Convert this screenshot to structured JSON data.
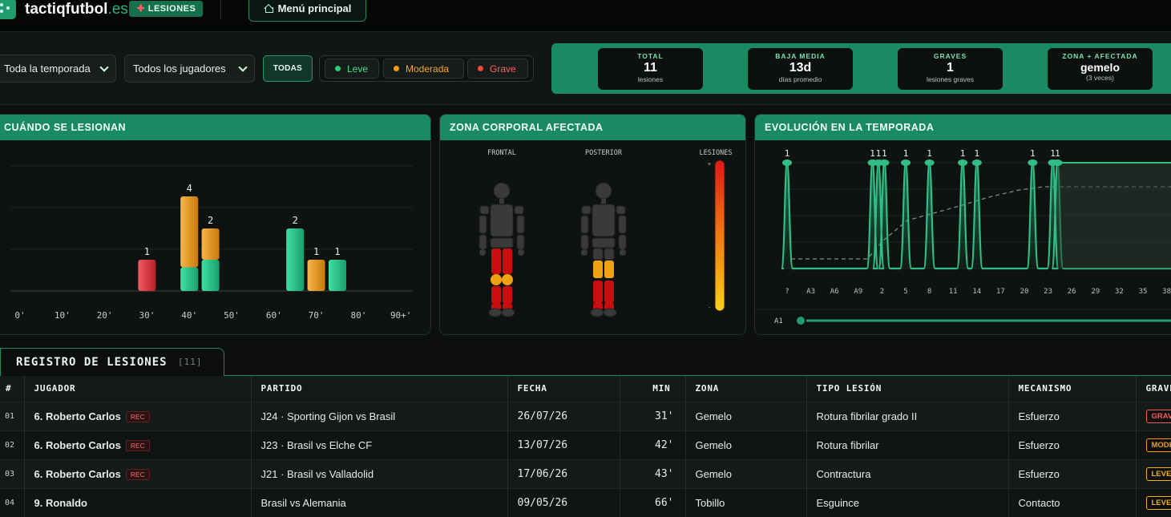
{
  "topbar": {
    "brand_name": "tactiqfutbol",
    "brand_tld": ".es",
    "section_badge": "LESIONES",
    "menu_button": "Menú principal"
  },
  "filters": {
    "season": "Toda la temporada",
    "players": "Todos los jugadores",
    "all_button": "TODAS",
    "severities": [
      {
        "label": "Leve",
        "color": "#2ecc71"
      },
      {
        "label": "Moderada",
        "color": "#f39c12"
      },
      {
        "label": "Grave",
        "color": "#e74c3c"
      }
    ]
  },
  "stats": [
    {
      "label": "TOTAL",
      "value": "11",
      "sub": "lesiones"
    },
    {
      "label": "BAJA MEDIA",
      "value": "13d",
      "sub": "días promedio"
    },
    {
      "label": "GRAVES",
      "value": "1",
      "sub": "lesiones graves"
    },
    {
      "label": "ZONA + AFECTADA",
      "value": "gemelo",
      "sub": "(3 veces)"
    }
  ],
  "panels": {
    "when": "CUÁNDO SE LESIONAN",
    "body": "ZONA CORPORAL AFECTADA",
    "evolution": "EVOLUCIÓN EN LA TEMPORADA"
  },
  "body_map": {
    "front_label": "FRONTAL",
    "back_label": "POSTERIOR",
    "scale_label": "LESIONES",
    "scale_max": "+",
    "scale_min": "-"
  },
  "chart_data": [
    {
      "type": "bar",
      "title": "CUÁNDO SE LESIONAN",
      "x_ticks": [
        "0'",
        "10'",
        "20'",
        "30'",
        "40'",
        "50'",
        "60'",
        "70'",
        "80'",
        "90+'"
      ],
      "ylim": [
        0,
        4
      ],
      "bars": [
        {
          "minute": 30,
          "total": 1,
          "segments": [
            {
              "severity": "Grave",
              "value": 1
            }
          ]
        },
        {
          "minute": 40,
          "total": 4,
          "segments": [
            {
              "severity": "Leve",
              "value": 1
            },
            {
              "severity": "Moderada",
              "value": 3
            }
          ]
        },
        {
          "minute": 45,
          "total": 2,
          "segments": [
            {
              "severity": "Leve",
              "value": 1
            },
            {
              "severity": "Moderada",
              "value": 1
            }
          ]
        },
        {
          "minute": 65,
          "total": 2,
          "segments": [
            {
              "severity": "Leve",
              "value": 2
            }
          ]
        },
        {
          "minute": 70,
          "total": 1,
          "segments": [
            {
              "severity": "Moderada",
              "value": 1
            }
          ]
        },
        {
          "minute": 75,
          "total": 1,
          "segments": [
            {
              "severity": "Leve",
              "value": 1
            }
          ]
        }
      ]
    },
    {
      "type": "line",
      "title": "EVOLUCIÓN EN LA TEMPORADA",
      "x_ticks": [
        "?",
        "A3",
        "A6",
        "A9",
        "2",
        "5",
        "8",
        "11",
        "14",
        "17",
        "20",
        "23",
        "26",
        "29",
        "32",
        "35",
        "38"
      ],
      "peak_positions": [
        0,
        3.6,
        3.85,
        4.1,
        5,
        6,
        7.4,
        8,
        10.35,
        11.2,
        11.4
      ],
      "peak_labels": [
        "1",
        "1",
        "1",
        "1",
        "1",
        "1",
        "1",
        "1",
        "1",
        "1",
        "1"
      ],
      "slider_label": "A1"
    }
  ],
  "registry": {
    "title": "REGISTRO DE LESIONES",
    "count": "[11]",
    "columns": [
      "#",
      "JUGADOR",
      "PARTIDO",
      "FECHA",
      "MIN",
      "ZONA",
      "TIPO LESIÓN",
      "MECANISMO",
      "GRAVEDAD"
    ],
    "rec_label": "REC",
    "rows": [
      {
        "num": "01",
        "player": "6. Roberto Carlos",
        "rec": true,
        "match": "J24 · Sporting Gijon vs Brasil",
        "date": "26/07/26",
        "min": "31'",
        "zone": "Gemelo",
        "type": "Rotura fibrilar grado II",
        "mechanism": "Esfuerzo",
        "severity": "GRAVE",
        "sev_color": "#ff5a5a"
      },
      {
        "num": "02",
        "player": "6. Roberto Carlos",
        "rec": true,
        "match": "J23 · Brasil vs Elche CF",
        "date": "13/07/26",
        "min": "42'",
        "zone": "Gemelo",
        "type": "Rotura fibrilar",
        "mechanism": "Esfuerzo",
        "severity": "MODERADA",
        "sev_color": "#f39c12"
      },
      {
        "num": "03",
        "player": "6. Roberto Carlos",
        "rec": true,
        "match": "J21 · Brasil vs Valladolid",
        "date": "17/06/26",
        "min": "43'",
        "zone": "Gemelo",
        "type": "Contractura",
        "mechanism": "Esfuerzo",
        "severity": "LEVE",
        "sev_color": "#f3b112"
      },
      {
        "num": "04",
        "player": "9. Ronaldo",
        "rec": false,
        "match": "Brasil vs Alemania",
        "date": "09/05/26",
        "min": "66'",
        "zone": "Tobillo",
        "type": "Esguince",
        "mechanism": "Contacto",
        "severity": "LEVE",
        "sev_color": "#f3b112"
      }
    ]
  }
}
